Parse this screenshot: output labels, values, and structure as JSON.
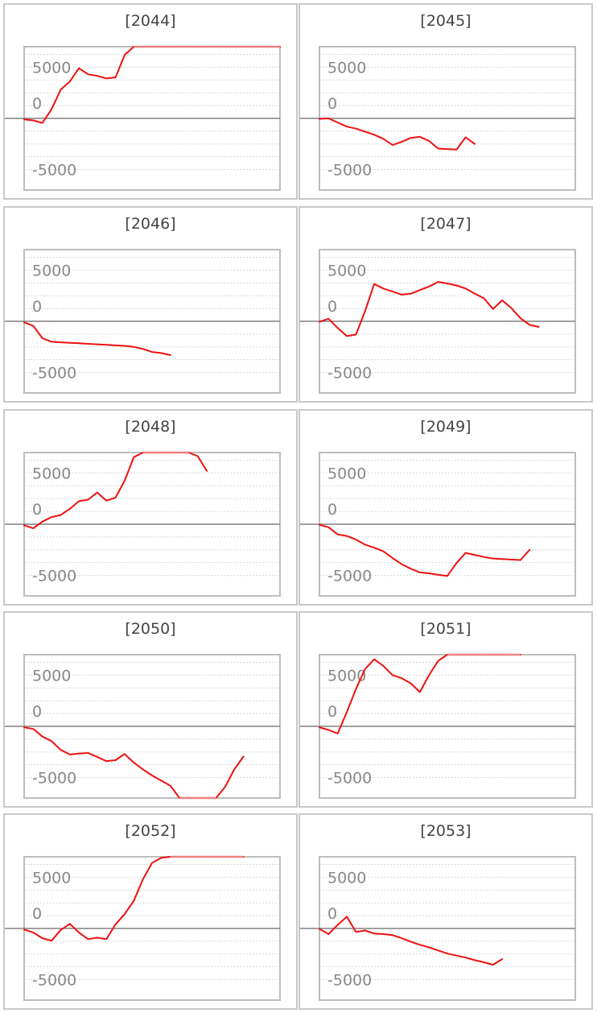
{
  "colors": {
    "line": "#ee1111",
    "clip_line": "#f08080",
    "zero_line": "#808080",
    "grid": "#d8d8d8",
    "frame": "#bdbdbd",
    "panel_border": "#c8c8c8"
  },
  "chart_data": [
    {
      "type": "line",
      "title": "[2044]",
      "ylim": [
        -7000,
        7000
      ],
      "yticks": [
        5000,
        0,
        -5000
      ],
      "ytick_labels": [
        "5000",
        "0",
        "-5000"
      ],
      "grid": "dotted",
      "x": [
        0,
        1,
        2,
        3,
        4,
        5,
        6,
        7,
        8,
        9,
        10,
        11,
        12,
        13,
        14,
        15,
        16,
        17,
        18,
        19,
        20,
        21,
        22,
        23,
        24,
        25,
        26,
        27,
        28
      ],
      "values": [
        -100,
        -200,
        -450,
        900,
        2800,
        3600,
        4900,
        4300,
        4150,
        3900,
        4000,
        6200,
        7000,
        7000,
        7000,
        7000,
        7000,
        7000,
        7000,
        7000,
        7000,
        7000,
        7000,
        7000,
        7000,
        7000,
        7000,
        7000,
        7000
      ],
      "clipped_at_top": true
    },
    {
      "type": "line",
      "title": "[2045]",
      "ylim": [
        -7000,
        7000
      ],
      "yticks": [
        5000,
        0,
        -5000
      ],
      "ytick_labels": [
        "5000",
        "0",
        "-5000"
      ],
      "grid": "dotted",
      "x": [
        0,
        1,
        2,
        3,
        4,
        5,
        6,
        7,
        8,
        9,
        10,
        11,
        12,
        13,
        14,
        15,
        16,
        17
      ],
      "values": [
        -50,
        0,
        -400,
        -800,
        -1000,
        -1300,
        -1600,
        -2000,
        -2600,
        -2300,
        -1900,
        -1800,
        -2200,
        -2950,
        -3000,
        -3050,
        -1850,
        -2500
      ]
    },
    {
      "type": "line",
      "title": "[2046]",
      "ylim": [
        -7000,
        7000
      ],
      "yticks": [
        5000,
        0,
        -5000
      ],
      "ytick_labels": [
        "5000",
        "0",
        "-5000"
      ],
      "grid": "dotted",
      "x": [
        0,
        1,
        2,
        3,
        4,
        5,
        6,
        7,
        8,
        9,
        10,
        11,
        12,
        13,
        14,
        15,
        16
      ],
      "values": [
        -100,
        -450,
        -1650,
        -2000,
        -2050,
        -2100,
        -2150,
        -2200,
        -2250,
        -2300,
        -2350,
        -2400,
        -2500,
        -2700,
        -3000,
        -3100,
        -3300
      ]
    },
    {
      "type": "line",
      "title": "[2047]",
      "ylim": [
        -7000,
        7000
      ],
      "yticks": [
        5000,
        0,
        -5000
      ],
      "ytick_labels": [
        "5000",
        "0",
        "-5000"
      ],
      "grid": "dotted",
      "x": [
        0,
        1,
        2,
        3,
        4,
        5,
        6,
        7,
        8,
        9,
        10,
        11,
        12,
        13,
        14,
        15,
        16,
        17,
        18,
        19,
        20,
        21,
        22,
        23,
        24
      ],
      "values": [
        -50,
        250,
        -650,
        -1450,
        -1300,
        1000,
        3650,
        3200,
        2900,
        2600,
        2700,
        3050,
        3400,
        3850,
        3700,
        3500,
        3200,
        2700,
        2250,
        1200,
        2050,
        1300,
        300,
        -350,
        -550
      ]
    },
    {
      "type": "line",
      "title": "[2048]",
      "ylim": [
        -7000,
        7000
      ],
      "yticks": [
        5000,
        0,
        -5000
      ],
      "ytick_labels": [
        "5000",
        "0",
        "-5000"
      ],
      "grid": "dotted",
      "x": [
        0,
        1,
        2,
        3,
        4,
        5,
        6,
        7,
        8,
        9,
        10,
        11,
        12,
        13,
        14,
        15,
        16,
        17,
        18,
        19,
        20
      ],
      "values": [
        -100,
        -400,
        250,
        700,
        900,
        1500,
        2250,
        2400,
        3100,
        2300,
        2600,
        4250,
        6550,
        7000,
        7000,
        7000,
        7000,
        7000,
        7000,
        6650,
        5200
      ],
      "clipped_at_top": true
    },
    {
      "type": "line",
      "title": "[2049]",
      "ylim": [
        -7000,
        7000
      ],
      "yticks": [
        5000,
        0,
        -5000
      ],
      "ytick_labels": [
        "5000",
        "0",
        "-5000"
      ],
      "grid": "dotted",
      "x": [
        0,
        1,
        2,
        3,
        4,
        5,
        6,
        7,
        8,
        9,
        10,
        11,
        12,
        13,
        14,
        15,
        16,
        17,
        18,
        19,
        20,
        21,
        22,
        23
      ],
      "values": [
        -50,
        -300,
        -1000,
        -1150,
        -1500,
        -2000,
        -2300,
        -2650,
        -3300,
        -3900,
        -4350,
        -4700,
        -4800,
        -4950,
        -5050,
        -3800,
        -2800,
        -3000,
        -3200,
        -3350,
        -3400,
        -3450,
        -3500,
        -2500
      ]
    },
    {
      "type": "line",
      "title": "[2050]",
      "ylim": [
        -7000,
        7000
      ],
      "yticks": [
        5000,
        0,
        -5000
      ],
      "ytick_labels": [
        "5000",
        "0",
        "-5000"
      ],
      "grid": "dotted",
      "x": [
        0,
        1,
        2,
        3,
        4,
        5,
        6,
        7,
        8,
        9,
        10,
        11,
        12,
        13,
        14,
        15,
        16,
        17,
        18,
        19,
        20,
        21,
        22,
        23,
        24
      ],
      "values": [
        -100,
        -250,
        -1000,
        -1450,
        -2300,
        -2750,
        -2650,
        -2600,
        -3000,
        -3400,
        -3300,
        -2700,
        -3550,
        -4200,
        -4800,
        -5300,
        -5800,
        -7000,
        -7000,
        -7000,
        -7000,
        -7000,
        -5900,
        -4200,
        -2950
      ],
      "clipped_at_bottom": true
    },
    {
      "type": "line",
      "title": "[2051]",
      "ylim": [
        -7000,
        7000
      ],
      "yticks": [
        5000,
        0,
        -5000
      ],
      "ytick_labels": [
        "5000",
        "0",
        "-5000"
      ],
      "grid": "dotted",
      "x": [
        0,
        1,
        2,
        3,
        4,
        5,
        6,
        7,
        8,
        9,
        10,
        11,
        12,
        13,
        14,
        15,
        16,
        17,
        18,
        19,
        20,
        21,
        22
      ],
      "values": [
        -100,
        -350,
        -700,
        1400,
        3650,
        5600,
        6550,
        5900,
        5000,
        4700,
        4200,
        3350,
        5000,
        6400,
        7000,
        7000,
        7000,
        7000,
        7000,
        7000,
        7000,
        7000,
        7000
      ],
      "clipped_at_top": true
    },
    {
      "type": "line",
      "title": "[2052]",
      "ylim": [
        -7000,
        7000
      ],
      "yticks": [
        5000,
        0,
        -5000
      ],
      "ytick_labels": [
        "5000",
        "0",
        "-5000"
      ],
      "grid": "dotted",
      "x": [
        0,
        1,
        2,
        3,
        4,
        5,
        6,
        7,
        8,
        9,
        10,
        11,
        12,
        13,
        14,
        15,
        16,
        17,
        18,
        19,
        20,
        21,
        22,
        23,
        24
      ],
      "values": [
        -100,
        -400,
        -950,
        -1200,
        -150,
        450,
        -400,
        -1050,
        -900,
        -1050,
        400,
        1400,
        2700,
        4800,
        6400,
        6900,
        7000,
        7000,
        7000,
        7000,
        7000,
        7000,
        7000,
        7000,
        7000
      ],
      "clipped_at_top": true
    },
    {
      "type": "line",
      "title": "[2053]",
      "ylim": [
        -7000,
        7000
      ],
      "yticks": [
        5000,
        0,
        -5000
      ],
      "ytick_labels": [
        "5000",
        "0",
        "-5000"
      ],
      "grid": "dotted",
      "x": [
        0,
        1,
        2,
        3,
        4,
        5,
        6,
        7,
        8,
        9,
        10,
        11,
        12,
        13,
        14,
        15,
        16,
        17,
        18,
        19,
        20
      ],
      "values": [
        -50,
        -550,
        350,
        1150,
        -350,
        -200,
        -500,
        -550,
        -650,
        -950,
        -1300,
        -1600,
        -1850,
        -2150,
        -2450,
        -2650,
        -2850,
        -3100,
        -3300,
        -3550,
        -3000
      ]
    }
  ]
}
